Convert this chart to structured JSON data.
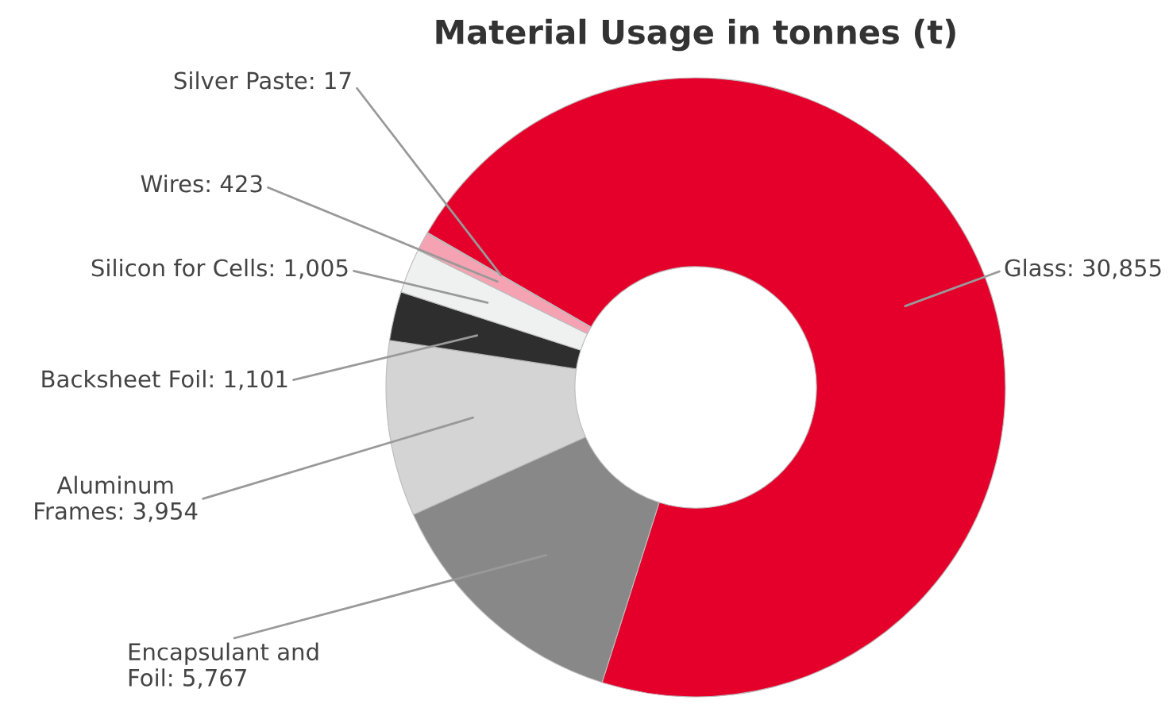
{
  "chart_data": {
    "type": "donut",
    "title": "Material Usage in tonnes (t)",
    "categories": [
      "Glass",
      "Encapsulant and\nFoil",
      "Aluminum\nFrames",
      "Backsheet Foil",
      "Silicon for Cells",
      "Wires",
      "Silver Paste"
    ],
    "values": [
      30855,
      5767,
      3954,
      1101,
      1005,
      423,
      17
    ],
    "value_labels": [
      "30,855",
      "5,767",
      "3,954",
      "1,101",
      "1,005",
      "423",
      "17"
    ],
    "colors": [
      "#e4002b",
      "#888888",
      "#d4d4d4",
      "#2e2e2e",
      "#eff1f1",
      "#f5a3b3",
      "#e4002b"
    ],
    "legend": false
  }
}
